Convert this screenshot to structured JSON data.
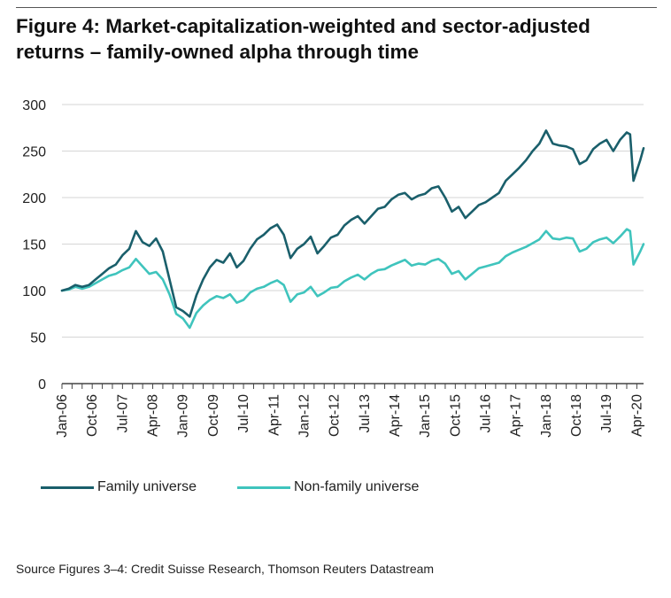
{
  "header": {
    "title_line1": "Figure 4: Market-capitalization-weighted and sector-adjusted",
    "title_line2": "returns – family-owned alpha through time"
  },
  "source": "Source Figures 3–4: Credit Suisse Research, Thomson Reuters Datastream",
  "colors": {
    "family": "#1a5f6b",
    "nonfamily": "#3fc4bd",
    "axis": "#444444"
  },
  "chart_data": {
    "type": "line",
    "title": "Figure 4: Market-capitalization-weighted and sector-adjusted returns – family-owned alpha through time",
    "xlabel": "",
    "ylabel": "",
    "ylim": [
      0,
      300
    ],
    "yticks": [
      0,
      50,
      100,
      150,
      200,
      250,
      300
    ],
    "xlim": [
      "2006-01",
      "2020-06"
    ],
    "grid": "horizontal",
    "legend_position": "bottom",
    "xtick_labels": [
      "Jan-06",
      "Oct-06",
      "Jul-07",
      "Apr-08",
      "Jan-09",
      "Oct-09",
      "Jul-10",
      "Apr-11",
      "Jan-12",
      "Oct-12",
      "Jul-13",
      "Apr-14",
      "Jan-15",
      "Oct-15",
      "Jul-16",
      "Apr-17",
      "Jan-18",
      "Oct-18",
      "Jul-19",
      "Apr-20"
    ],
    "series": [
      {
        "name": "Family universe",
        "points": [
          [
            "2006-01",
            100
          ],
          [
            "2006-03",
            102
          ],
          [
            "2006-05",
            106
          ],
          [
            "2006-07",
            104
          ],
          [
            "2006-09",
            106
          ],
          [
            "2006-11",
            112
          ],
          [
            "2007-01",
            118
          ],
          [
            "2007-03",
            124
          ],
          [
            "2007-05",
            128
          ],
          [
            "2007-07",
            138
          ],
          [
            "2007-09",
            145
          ],
          [
            "2007-11",
            164
          ],
          [
            "2008-01",
            152
          ],
          [
            "2008-03",
            148
          ],
          [
            "2008-05",
            156
          ],
          [
            "2008-07",
            142
          ],
          [
            "2008-09",
            112
          ],
          [
            "2008-11",
            82
          ],
          [
            "2009-01",
            78
          ],
          [
            "2009-03",
            72
          ],
          [
            "2009-05",
            95
          ],
          [
            "2009-07",
            112
          ],
          [
            "2009-09",
            125
          ],
          [
            "2009-11",
            133
          ],
          [
            "2010-01",
            130
          ],
          [
            "2010-03",
            140
          ],
          [
            "2010-05",
            125
          ],
          [
            "2010-07",
            132
          ],
          [
            "2010-09",
            145
          ],
          [
            "2010-11",
            155
          ],
          [
            "2011-01",
            160
          ],
          [
            "2011-03",
            167
          ],
          [
            "2011-05",
            171
          ],
          [
            "2011-07",
            160
          ],
          [
            "2011-09",
            135
          ],
          [
            "2011-11",
            145
          ],
          [
            "2012-01",
            150
          ],
          [
            "2012-03",
            158
          ],
          [
            "2012-05",
            140
          ],
          [
            "2012-07",
            148
          ],
          [
            "2012-09",
            157
          ],
          [
            "2012-11",
            160
          ],
          [
            "2013-01",
            170
          ],
          [
            "2013-03",
            176
          ],
          [
            "2013-05",
            180
          ],
          [
            "2013-07",
            172
          ],
          [
            "2013-09",
            180
          ],
          [
            "2013-11",
            188
          ],
          [
            "2014-01",
            190
          ],
          [
            "2014-03",
            198
          ],
          [
            "2014-05",
            203
          ],
          [
            "2014-07",
            205
          ],
          [
            "2014-09",
            198
          ],
          [
            "2014-11",
            202
          ],
          [
            "2015-01",
            204
          ],
          [
            "2015-03",
            210
          ],
          [
            "2015-05",
            212
          ],
          [
            "2015-07",
            200
          ],
          [
            "2015-09",
            185
          ],
          [
            "2015-11",
            190
          ],
          [
            "2016-01",
            178
          ],
          [
            "2016-03",
            185
          ],
          [
            "2016-05",
            192
          ],
          [
            "2016-07",
            195
          ],
          [
            "2016-09",
            200
          ],
          [
            "2016-11",
            205
          ],
          [
            "2017-01",
            218
          ],
          [
            "2017-03",
            225
          ],
          [
            "2017-05",
            232
          ],
          [
            "2017-07",
            240
          ],
          [
            "2017-09",
            250
          ],
          [
            "2017-11",
            258
          ],
          [
            "2018-01",
            272
          ],
          [
            "2018-03",
            258
          ],
          [
            "2018-05",
            256
          ],
          [
            "2018-07",
            255
          ],
          [
            "2018-09",
            252
          ],
          [
            "2018-11",
            236
          ],
          [
            "2019-01",
            240
          ],
          [
            "2019-03",
            252
          ],
          [
            "2019-05",
            258
          ],
          [
            "2019-07",
            262
          ],
          [
            "2019-09",
            250
          ],
          [
            "2019-11",
            262
          ],
          [
            "2020-01",
            270
          ],
          [
            "2020-02",
            268
          ],
          [
            "2020-03",
            218
          ],
          [
            "2020-05",
            240
          ],
          [
            "2020-06",
            253
          ]
        ]
      },
      {
        "name": "Non-family universe",
        "points": [
          [
            "2006-01",
            100
          ],
          [
            "2006-03",
            101
          ],
          [
            "2006-05",
            104
          ],
          [
            "2006-07",
            102
          ],
          [
            "2006-09",
            104
          ],
          [
            "2006-11",
            108
          ],
          [
            "2007-01",
            112
          ],
          [
            "2007-03",
            116
          ],
          [
            "2007-05",
            118
          ],
          [
            "2007-07",
            122
          ],
          [
            "2007-09",
            125
          ],
          [
            "2007-11",
            134
          ],
          [
            "2008-01",
            126
          ],
          [
            "2008-03",
            118
          ],
          [
            "2008-05",
            120
          ],
          [
            "2008-07",
            112
          ],
          [
            "2008-09",
            96
          ],
          [
            "2008-11",
            75
          ],
          [
            "2009-01",
            70
          ],
          [
            "2009-03",
            60
          ],
          [
            "2009-05",
            76
          ],
          [
            "2009-07",
            84
          ],
          [
            "2009-09",
            90
          ],
          [
            "2009-11",
            94
          ],
          [
            "2010-01",
            92
          ],
          [
            "2010-03",
            96
          ],
          [
            "2010-05",
            87
          ],
          [
            "2010-07",
            90
          ],
          [
            "2010-09",
            98
          ],
          [
            "2010-11",
            102
          ],
          [
            "2011-01",
            104
          ],
          [
            "2011-03",
            108
          ],
          [
            "2011-05",
            111
          ],
          [
            "2011-07",
            106
          ],
          [
            "2011-09",
            88
          ],
          [
            "2011-11",
            96
          ],
          [
            "2012-01",
            98
          ],
          [
            "2012-03",
            104
          ],
          [
            "2012-05",
            94
          ],
          [
            "2012-07",
            98
          ],
          [
            "2012-09",
            103
          ],
          [
            "2012-11",
            104
          ],
          [
            "2013-01",
            110
          ],
          [
            "2013-03",
            114
          ],
          [
            "2013-05",
            117
          ],
          [
            "2013-07",
            112
          ],
          [
            "2013-09",
            118
          ],
          [
            "2013-11",
            122
          ],
          [
            "2014-01",
            123
          ],
          [
            "2014-03",
            127
          ],
          [
            "2014-05",
            130
          ],
          [
            "2014-07",
            133
          ],
          [
            "2014-09",
            127
          ],
          [
            "2014-11",
            129
          ],
          [
            "2015-01",
            128
          ],
          [
            "2015-03",
            132
          ],
          [
            "2015-05",
            134
          ],
          [
            "2015-07",
            129
          ],
          [
            "2015-09",
            118
          ],
          [
            "2015-11",
            121
          ],
          [
            "2016-01",
            112
          ],
          [
            "2016-03",
            118
          ],
          [
            "2016-05",
            124
          ],
          [
            "2016-07",
            126
          ],
          [
            "2016-09",
            128
          ],
          [
            "2016-11",
            130
          ],
          [
            "2017-01",
            137
          ],
          [
            "2017-03",
            141
          ],
          [
            "2017-05",
            144
          ],
          [
            "2017-07",
            147
          ],
          [
            "2017-09",
            151
          ],
          [
            "2017-11",
            155
          ],
          [
            "2018-01",
            164
          ],
          [
            "2018-03",
            156
          ],
          [
            "2018-05",
            155
          ],
          [
            "2018-07",
            157
          ],
          [
            "2018-09",
            156
          ],
          [
            "2018-11",
            142
          ],
          [
            "2019-01",
            145
          ],
          [
            "2019-03",
            152
          ],
          [
            "2019-05",
            155
          ],
          [
            "2019-07",
            157
          ],
          [
            "2019-09",
            151
          ],
          [
            "2019-11",
            158
          ],
          [
            "2020-01",
            166
          ],
          [
            "2020-02",
            164
          ],
          [
            "2020-03",
            128
          ],
          [
            "2020-05",
            142
          ],
          [
            "2020-06",
            150
          ]
        ]
      }
    ]
  }
}
